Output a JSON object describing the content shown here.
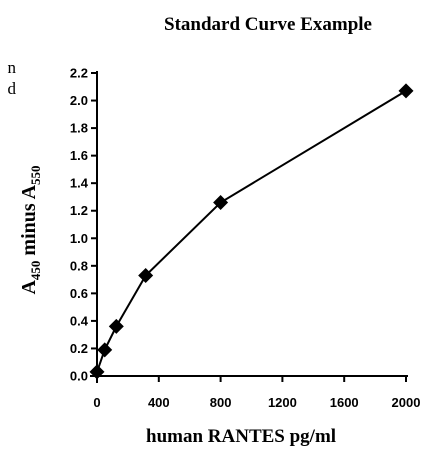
{
  "left_margin_fragments": [
    "n",
    "d"
  ],
  "chart_data": {
    "type": "line",
    "title": "Standard Curve Example",
    "xlabel": "human RANTES pg/ml",
    "ylabel": {
      "base": "A",
      "sub1": "450",
      "mid": " minus A",
      "sub2": "550"
    },
    "xlim": [
      0,
      2000
    ],
    "ylim": [
      0.0,
      2.2
    ],
    "x_ticks": [
      0,
      400,
      800,
      1200,
      1600,
      2000
    ],
    "x_tick_labels": [
      "0",
      "400",
      "800",
      "1200",
      "1600",
      "2000"
    ],
    "y_ticks": [
      0.0,
      0.2,
      0.4,
      0.6,
      0.8,
      1.0,
      1.2,
      1.4,
      1.6,
      1.8,
      2.0,
      2.2
    ],
    "y_tick_labels": [
      "0.0",
      "0.2",
      "0.4",
      "0.6",
      "0.8",
      "1.0",
      "1.2",
      "1.4",
      "1.6",
      "1.8",
      "2.0",
      "2.2"
    ],
    "grid": false,
    "series": [
      {
        "marker": "diamond",
        "color": "#000000",
        "x": [
          0,
          50,
          125,
          315,
          800,
          2000
        ],
        "y": [
          0.03,
          0.19,
          0.36,
          0.73,
          1.26,
          2.07
        ]
      }
    ]
  }
}
